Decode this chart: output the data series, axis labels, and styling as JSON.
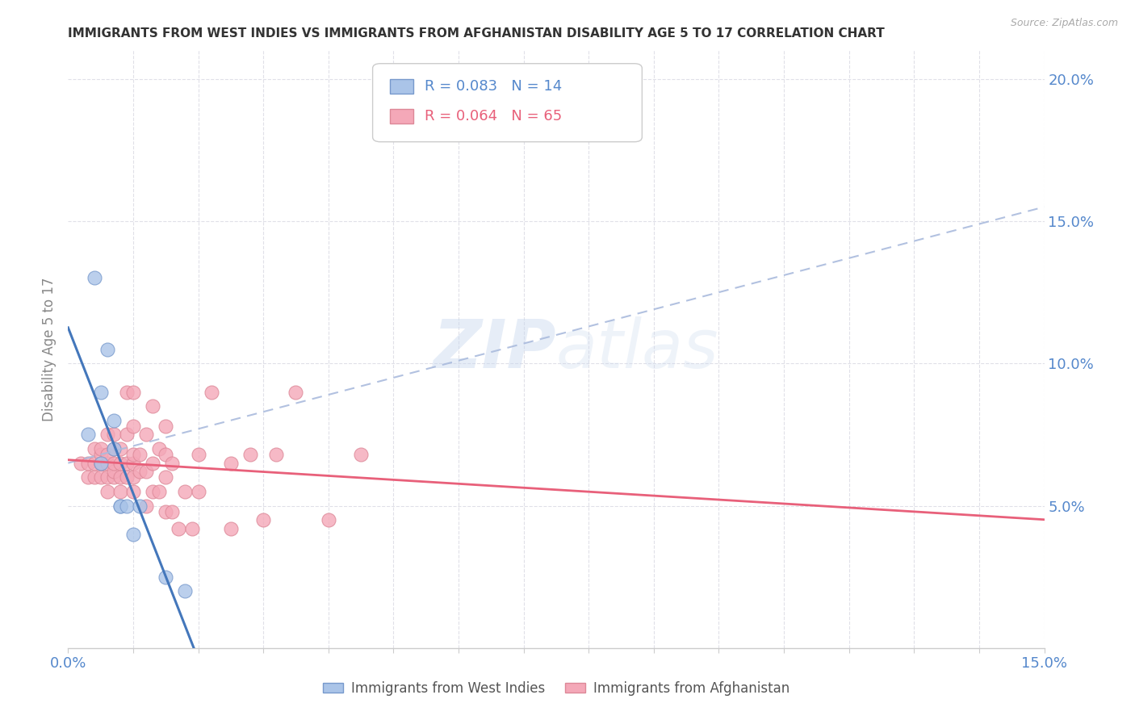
{
  "title": "IMMIGRANTS FROM WEST INDIES VS IMMIGRANTS FROM AFGHANISTAN DISABILITY AGE 5 TO 17 CORRELATION CHART",
  "source": "Source: ZipAtlas.com",
  "ylabel": "Disability Age 5 to 17",
  "xlim": [
    0.0,
    0.15
  ],
  "ylim": [
    0.0,
    0.21
  ],
  "background_color": "#ffffff",
  "watermark_line1": "ZIP",
  "watermark_line2": "atlas",
  "legend_R1": "R = 0.083",
  "legend_N1": "N = 14",
  "legend_R2": "R = 0.064",
  "legend_N2": "N = 65",
  "color_west_indies": "#aac4e8",
  "color_afghanistan": "#f4a8b8",
  "color_line_west_indies": "#4477bb",
  "color_line_afghanistan": "#e8607a",
  "color_trend_dashed": "#aabbdd",
  "color_axis_text": "#5588cc",
  "color_title": "#333333",
  "color_source": "#aaaaaa",
  "color_ylabel": "#888888",
  "color_grid": "#e0e0e8",
  "west_indies_x": [
    0.003,
    0.004,
    0.005,
    0.005,
    0.006,
    0.007,
    0.007,
    0.008,
    0.008,
    0.009,
    0.01,
    0.011,
    0.015,
    0.018
  ],
  "west_indies_y": [
    0.075,
    0.13,
    0.09,
    0.065,
    0.105,
    0.08,
    0.07,
    0.05,
    0.05,
    0.05,
    0.04,
    0.05,
    0.025,
    0.02
  ],
  "afghanistan_x": [
    0.002,
    0.003,
    0.003,
    0.004,
    0.004,
    0.004,
    0.005,
    0.005,
    0.005,
    0.005,
    0.005,
    0.006,
    0.006,
    0.006,
    0.006,
    0.006,
    0.007,
    0.007,
    0.007,
    0.007,
    0.007,
    0.008,
    0.008,
    0.008,
    0.008,
    0.009,
    0.009,
    0.009,
    0.009,
    0.01,
    0.01,
    0.01,
    0.01,
    0.01,
    0.01,
    0.011,
    0.011,
    0.012,
    0.012,
    0.012,
    0.013,
    0.013,
    0.013,
    0.014,
    0.014,
    0.015,
    0.015,
    0.015,
    0.015,
    0.016,
    0.016,
    0.017,
    0.018,
    0.019,
    0.02,
    0.02,
    0.022,
    0.025,
    0.025,
    0.028,
    0.03,
    0.032,
    0.035,
    0.04,
    0.045
  ],
  "afghanistan_y": [
    0.065,
    0.06,
    0.065,
    0.06,
    0.065,
    0.07,
    0.06,
    0.065,
    0.065,
    0.068,
    0.07,
    0.055,
    0.06,
    0.065,
    0.068,
    0.075,
    0.06,
    0.062,
    0.065,
    0.07,
    0.075,
    0.055,
    0.06,
    0.065,
    0.07,
    0.06,
    0.065,
    0.075,
    0.09,
    0.055,
    0.06,
    0.065,
    0.068,
    0.078,
    0.09,
    0.062,
    0.068,
    0.05,
    0.062,
    0.075,
    0.055,
    0.065,
    0.085,
    0.055,
    0.07,
    0.048,
    0.06,
    0.068,
    0.078,
    0.048,
    0.065,
    0.042,
    0.055,
    0.042,
    0.055,
    0.068,
    0.09,
    0.042,
    0.065,
    0.068,
    0.045,
    0.068,
    0.09,
    0.045,
    0.068
  ]
}
